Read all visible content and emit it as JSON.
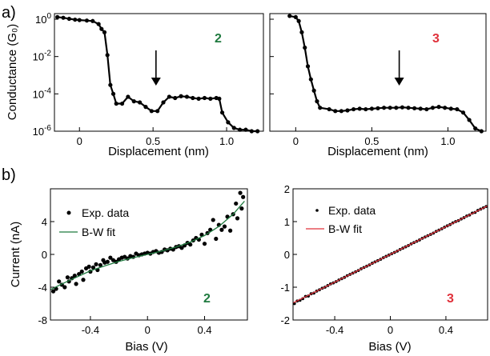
{
  "panel_labels": {
    "a": "a)",
    "b": "b)"
  },
  "colors": {
    "green": "#1f7a3f",
    "red": "#e0303a",
    "black": "#000000"
  },
  "chart_data": [
    {
      "id": "a2",
      "type": "line",
      "scale": "log",
      "ylabel": "Conductance (G₀)",
      "xlabel": "Displacement (nm)",
      "xlim": [
        -0.17,
        1.25
      ],
      "ylim": [
        1e-06,
        2
      ],
      "xticks": [
        0,
        0.5,
        1.0
      ],
      "xtick_labels": [
        "0",
        "0.5",
        "1.0"
      ],
      "yticks": [
        1,
        0.01,
        0.0001,
        1e-06
      ],
      "ytick_labels": [
        {
          "base": "10",
          "exp": "0"
        },
        {
          "base": "10",
          "exp": "-2"
        },
        {
          "base": "10",
          "exp": "-4"
        },
        {
          "base": "10",
          "exp": "-6"
        }
      ],
      "badge": "2",
      "badge_color": "#1f7a3f",
      "arrow_x": 0.52,
      "x": [
        -0.15,
        -0.11,
        -0.07,
        -0.03,
        0.0,
        0.05,
        0.09,
        0.13,
        0.15,
        0.17,
        0.19,
        0.21,
        0.23,
        0.25,
        0.29,
        0.33,
        0.37,
        0.41,
        0.45,
        0.49,
        0.53,
        0.57,
        0.61,
        0.65,
        0.69,
        0.73,
        0.77,
        0.81,
        0.85,
        0.89,
        0.93,
        0.95,
        0.97,
        1.01,
        1.05,
        1.09,
        1.13,
        1.17,
        1.21
      ],
      "y": [
        1.3,
        1.2,
        1.05,
        0.95,
        0.9,
        0.85,
        0.8,
        0.55,
        0.3,
        0.2,
        0.012,
        0.0003,
        0.0001,
        3e-05,
        3e-05,
        7e-05,
        4e-05,
        3.5e-05,
        2e-05,
        1.2e-05,
        1.2e-05,
        3.5e-05,
        7e-05,
        6e-05,
        7.5e-05,
        7e-05,
        6e-05,
        5.5e-05,
        6e-05,
        5.5e-05,
        6e-05,
        5.5e-05,
        1e-05,
        3e-06,
        1.5e-06,
        1.2e-06,
        1.2e-06,
        1e-06,
        1e-06
      ]
    },
    {
      "id": "a3",
      "type": "line",
      "scale": "log",
      "ylabel": "",
      "xlabel": "Displacement (nm)",
      "xlim": [
        -0.17,
        1.25
      ],
      "ylim": [
        1e-06,
        2
      ],
      "xticks": [
        0,
        0.5,
        1.0
      ],
      "xtick_labels": [
        "0",
        "0.5",
        "1.0"
      ],
      "yticks": [
        1,
        0.01,
        0.0001,
        1e-06
      ],
      "ytick_labels": [],
      "badge": "3",
      "badge_color": "#e0303a",
      "arrow_x": 0.68,
      "x": [
        -0.04,
        0.0,
        0.02,
        0.04,
        0.06,
        0.08,
        0.1,
        0.12,
        0.14,
        0.16,
        0.22,
        0.26,
        0.3,
        0.34,
        0.38,
        0.42,
        0.46,
        0.5,
        0.54,
        0.58,
        0.62,
        0.66,
        0.7,
        0.74,
        0.78,
        0.82,
        0.86,
        0.9,
        0.94,
        0.98,
        1.02,
        1.06,
        1.1,
        1.14,
        1.18,
        1.22
      ],
      "y": [
        1.5,
        1.3,
        0.8,
        0.2,
        0.03,
        0.003,
        0.0006,
        0.00015,
        4e-05,
        1.8e-05,
        1.5e-05,
        1.2e-05,
        1.2e-05,
        1.3e-05,
        1.5e-05,
        1.6e-05,
        1.5e-05,
        1.6e-05,
        1.7e-05,
        1.8e-05,
        1.8e-05,
        1.8e-05,
        1.9e-05,
        1.8e-05,
        1.7e-05,
        1.6e-05,
        1.5e-05,
        1.8e-05,
        2e-05,
        1.8e-05,
        1.6e-05,
        1.5e-05,
        1e-05,
        4e-06,
        1.4e-06,
        1e-06
      ]
    },
    {
      "id": "b2",
      "type": "scatter",
      "ylabel": "Current (nA)",
      "xlabel": "Bias (V)",
      "xlim": [
        -0.68,
        0.7
      ],
      "ylim": [
        -8,
        8
      ],
      "xticks": [
        -0.4,
        0,
        0.4
      ],
      "xtick_labels": [
        "-0.4",
        "0",
        "0.4"
      ],
      "yticks": [
        -8,
        -4,
        0,
        4
      ],
      "ytick_labels": [
        "-8",
        "-4",
        "0",
        "4"
      ],
      "badge": "2",
      "badge_color": "#1f7a3f",
      "legend": [
        "Exp. data",
        "B-W fit"
      ],
      "fit_color": "#1f7a3f",
      "fit_x": [
        -0.68,
        -0.6,
        -0.5,
        -0.4,
        -0.3,
        -0.2,
        -0.1,
        0,
        0.1,
        0.2,
        0.3,
        0.4,
        0.5,
        0.6,
        0.68
      ],
      "fit_y": [
        -4.3,
        -3.6,
        -2.8,
        -2.0,
        -1.4,
        -0.85,
        -0.4,
        0,
        0.4,
        0.9,
        1.5,
        2.3,
        3.4,
        4.9,
        6.5
      ],
      "x": [
        -0.66,
        -0.64,
        -0.62,
        -0.6,
        -0.58,
        -0.56,
        -0.55,
        -0.53,
        -0.51,
        -0.5,
        -0.48,
        -0.46,
        -0.45,
        -0.43,
        -0.41,
        -0.4,
        -0.38,
        -0.36,
        -0.35,
        -0.33,
        -0.31,
        -0.3,
        -0.28,
        -0.26,
        -0.24,
        -0.22,
        -0.2,
        -0.18,
        -0.16,
        -0.14,
        -0.12,
        -0.1,
        -0.08,
        -0.06,
        -0.04,
        -0.02,
        0,
        0.02,
        0.04,
        0.06,
        0.08,
        0.1,
        0.12,
        0.14,
        0.16,
        0.18,
        0.2,
        0.22,
        0.24,
        0.26,
        0.28,
        0.3,
        0.32,
        0.34,
        0.36,
        0.38,
        0.4,
        0.42,
        0.44,
        0.46,
        0.48,
        0.5,
        0.52,
        0.54,
        0.56,
        0.58,
        0.6,
        0.62,
        0.63,
        0.65,
        0.66,
        0.67
      ],
      "y": [
        -4.5,
        -4.2,
        -3.3,
        -3.7,
        -4.0,
        -2.8,
        -3.3,
        -2.9,
        -2.6,
        -3.6,
        -2.4,
        -2.1,
        -3.1,
        -1.7,
        -1.5,
        -2.1,
        -1.6,
        -1.2,
        -1.9,
        -1.3,
        -0.7,
        -1.0,
        -0.9,
        -0.4,
        -0.7,
        -0.9,
        -0.6,
        -0.4,
        -0.3,
        -0.5,
        -0.2,
        -0.3,
        0.1,
        -0.1,
        0.0,
        0.1,
        0.2,
        0.1,
        0.3,
        0.4,
        0.2,
        0.3,
        0.6,
        0.5,
        0.7,
        0.6,
        0.9,
        1.0,
        0.8,
        1.1,
        1.4,
        1.2,
        1.7,
        2.0,
        1.8,
        2.4,
        1.3,
        2.6,
        3.0,
        4.2,
        1.9,
        3.6,
        3.0,
        3.4,
        4.6,
        2.9,
        4.9,
        6.2,
        4.4,
        7.5,
        5.6,
        7.0
      ]
    },
    {
      "id": "b3",
      "type": "scatter",
      "ylabel": "",
      "xlabel": "Bias (V)",
      "xlim": [
        -0.7,
        0.7
      ],
      "ylim": [
        -2,
        2
      ],
      "xticks": [
        -0.4,
        0,
        0.4
      ],
      "xtick_labels": [
        "-0.4",
        "0",
        "0.4"
      ],
      "yticks": [
        -2,
        -1,
        0,
        1,
        2
      ],
      "ytick_labels": [
        "-2",
        "-1",
        "0",
        "1",
        "2"
      ],
      "badge": "3",
      "badge_color": "#e0303a",
      "legend": [
        "Exp. data",
        "B-W fit"
      ],
      "fit_color": "#e0303a",
      "fit_x": [
        -0.7,
        0.7
      ],
      "fit_y": [
        -1.48,
        1.48
      ],
      "x": [
        -0.69,
        -0.67,
        -0.65,
        -0.63,
        -0.61,
        -0.59,
        -0.57,
        -0.55,
        -0.53,
        -0.51,
        -0.49,
        -0.47,
        -0.45,
        -0.43,
        -0.41,
        -0.39,
        -0.37,
        -0.35,
        -0.33,
        -0.31,
        -0.29,
        -0.27,
        -0.25,
        -0.23,
        -0.21,
        -0.19,
        -0.17,
        -0.15,
        -0.13,
        -0.11,
        -0.09,
        -0.07,
        -0.05,
        -0.03,
        -0.01,
        0.01,
        0.03,
        0.05,
        0.07,
        0.09,
        0.11,
        0.13,
        0.15,
        0.17,
        0.19,
        0.21,
        0.23,
        0.25,
        0.27,
        0.29,
        0.31,
        0.33,
        0.35,
        0.37,
        0.39,
        0.41,
        0.43,
        0.45,
        0.47,
        0.49,
        0.51,
        0.53,
        0.55,
        0.57,
        0.59,
        0.61,
        0.63,
        0.65,
        0.67,
        0.69
      ],
      "y": [
        -1.5,
        -1.42,
        -1.4,
        -1.35,
        -1.28,
        -1.27,
        -1.2,
        -1.18,
        -1.12,
        -1.08,
        -1.03,
        -1.0,
        -0.95,
        -0.9,
        -0.87,
        -0.83,
        -0.78,
        -0.74,
        -0.7,
        -0.65,
        -0.61,
        -0.57,
        -0.53,
        -0.49,
        -0.44,
        -0.4,
        -0.36,
        -0.32,
        -0.27,
        -0.23,
        -0.19,
        -0.15,
        -0.1,
        -0.06,
        -0.02,
        0.02,
        0.06,
        0.1,
        0.15,
        0.19,
        0.23,
        0.27,
        0.32,
        0.36,
        0.4,
        0.44,
        0.49,
        0.53,
        0.57,
        0.61,
        0.65,
        0.7,
        0.74,
        0.78,
        0.83,
        0.87,
        0.91,
        0.96,
        1.0,
        1.03,
        1.08,
        1.12,
        1.17,
        1.2,
        1.26,
        1.28,
        1.34,
        1.38,
        1.42,
        1.46
      ]
    }
  ]
}
